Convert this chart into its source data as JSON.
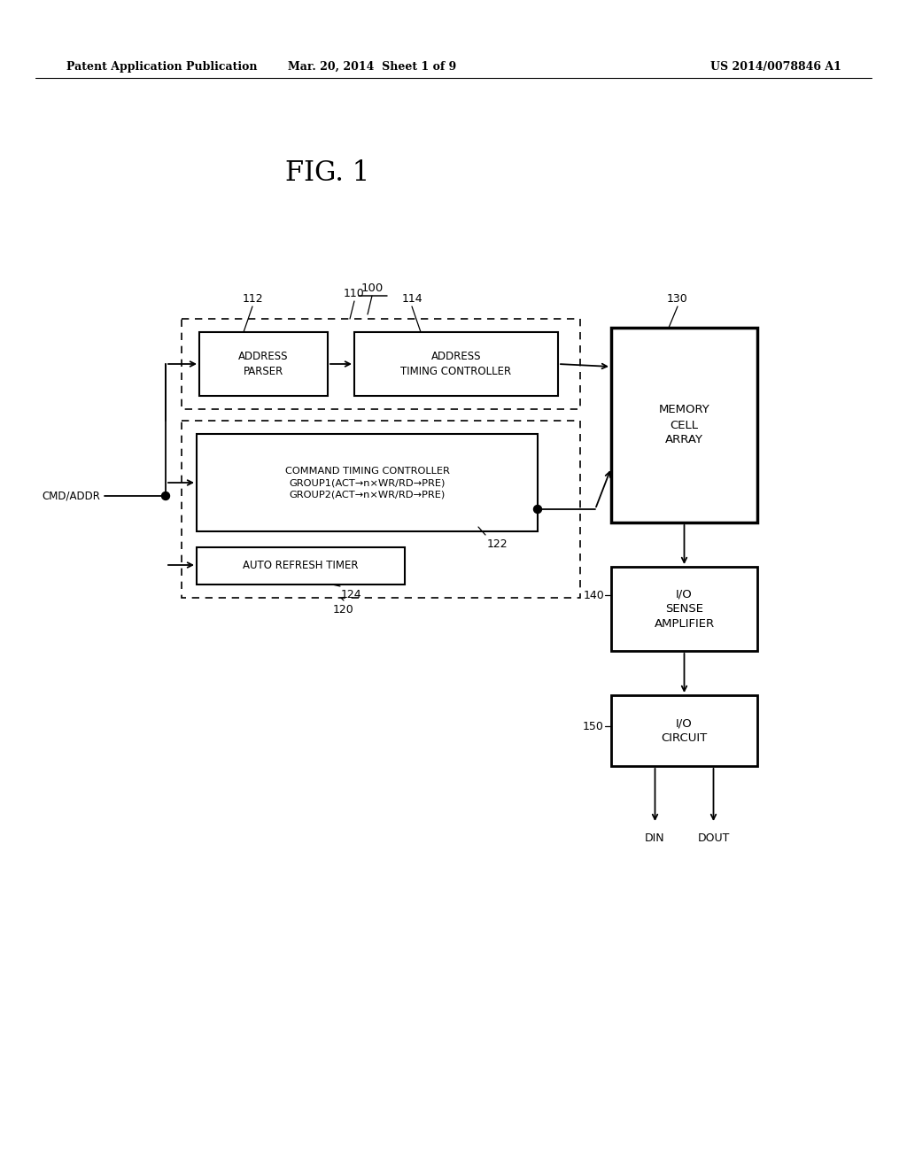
{
  "title": "FIG. 1",
  "header_left": "Patent Application Publication",
  "header_mid": "Mar. 20, 2014  Sheet 1 of 9",
  "header_right": "US 2014/0078846 A1",
  "bg_color": "#ffffff",
  "label_100": "100",
  "label_110": "110",
  "label_112": "112",
  "label_114": "114",
  "label_120": "120",
  "label_122": "122",
  "label_124": "124",
  "label_130": "130",
  "label_140": "140",
  "label_150": "150",
  "cmd_addr_label": "CMD/ADDR",
  "din_label": "DIN",
  "dout_label": "DOUT"
}
